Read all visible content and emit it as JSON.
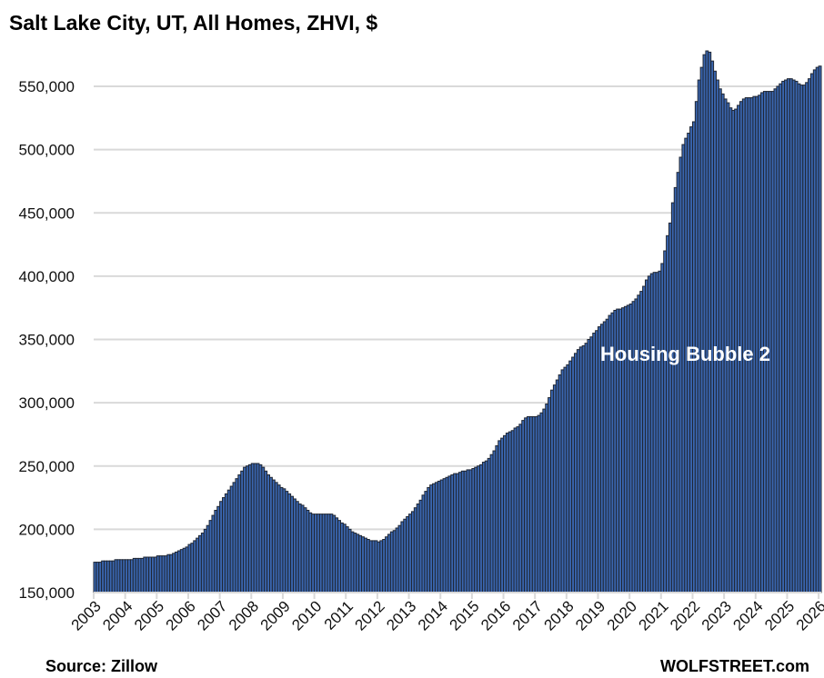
{
  "chart_data": {
    "type": "bar",
    "title": "Salt Lake City, UT, All Homes, ZHVI, $",
    "xlabel": "",
    "ylabel": "",
    "x_start": "2003-01",
    "x_frequency": "monthly",
    "ylim": [
      150000,
      580000
    ],
    "yticks": [
      150000,
      200000,
      250000,
      300000,
      350000,
      400000,
      450000,
      500000,
      550000
    ],
    "ytick_labels": [
      "150,000",
      "200,000",
      "250,000",
      "300,000",
      "350,000",
      "400,000",
      "450,000",
      "500,000",
      "550,000"
    ],
    "xtick_labels": [
      "2003",
      "2004",
      "2005",
      "2006",
      "2007",
      "2008",
      "2009",
      "2010",
      "2011",
      "2012",
      "2013",
      "2014",
      "2015",
      "2016",
      "2017",
      "2018",
      "2019",
      "2020",
      "2021",
      "2022",
      "2023",
      "2024",
      "2025",
      "2026"
    ],
    "grid": "horizontal",
    "bar_color": "#3a66b0",
    "bar_edge_color": "#1f2633",
    "grid_color": "#d9d9d9",
    "annotation": "Housing Bubble 2",
    "values": [
      174000,
      174000,
      174000,
      175000,
      175000,
      175000,
      175000,
      175000,
      176000,
      176000,
      176000,
      176000,
      176000,
      176000,
      176000,
      177000,
      177000,
      177000,
      177000,
      178000,
      178000,
      178000,
      178000,
      178000,
      179000,
      179000,
      179000,
      179000,
      180000,
      180000,
      181000,
      182000,
      183000,
      184000,
      185000,
      186000,
      188000,
      189000,
      191000,
      193000,
      195000,
      197000,
      200000,
      203000,
      207000,
      211000,
      215000,
      218000,
      222000,
      225000,
      228000,
      231000,
      234000,
      237000,
      240000,
      243000,
      246000,
      249000,
      250000,
      251000,
      252000,
      252000,
      252000,
      251000,
      249000,
      246000,
      243000,
      241000,
      239000,
      237000,
      235000,
      233000,
      232000,
      230000,
      228000,
      226000,
      224000,
      222000,
      220000,
      219000,
      217000,
      215000,
      213000,
      212000,
      212000,
      212000,
      212000,
      212000,
      212000,
      212000,
      212000,
      211000,
      209000,
      207000,
      205000,
      204000,
      202000,
      200000,
      198000,
      197000,
      196000,
      195000,
      194000,
      193000,
      192000,
      191000,
      191000,
      191000,
      190000,
      191000,
      192000,
      194000,
      196000,
      198000,
      199000,
      201000,
      203000,
      206000,
      208000,
      210000,
      212000,
      214000,
      217000,
      220000,
      223000,
      227000,
      230000,
      233000,
      235000,
      236000,
      237000,
      238000,
      239000,
      240000,
      241000,
      242000,
      243000,
      244000,
      244000,
      245000,
      246000,
      246000,
      247000,
      247000,
      248000,
      249000,
      250000,
      251000,
      253000,
      254000,
      256000,
      259000,
      262000,
      266000,
      270000,
      272000,
      274000,
      276000,
      277000,
      278000,
      280000,
      281000,
      283000,
      286000,
      288000,
      289000,
      289000,
      289000,
      289000,
      290000,
      292000,
      295000,
      299000,
      304000,
      310000,
      314000,
      318000,
      322000,
      326000,
      328000,
      330000,
      333000,
      336000,
      339000,
      342000,
      344000,
      345000,
      347000,
      350000,
      352000,
      355000,
      357000,
      360000,
      362000,
      364000,
      366000,
      369000,
      371000,
      373000,
      374000,
      374000,
      375000,
      376000,
      377000,
      378000,
      380000,
      382000,
      385000,
      388000,
      392000,
      397000,
      400000,
      402000,
      403000,
      403000,
      404000,
      410000,
      420000,
      432000,
      442000,
      458000,
      470000,
      482000,
      494000,
      504000,
      509000,
      513000,
      518000,
      522000,
      538000,
      555000,
      565000,
      575000,
      578000,
      577000,
      570000,
      562000,
      555000,
      548000,
      544000,
      540000,
      537000,
      533000,
      531000,
      532000,
      535000,
      538000,
      540000,
      541000,
      541000,
      541000,
      542000,
      542000,
      543000,
      545000,
      546000,
      546000,
      546000,
      546000,
      548000,
      550000,
      552000,
      554000,
      555000,
      556000,
      556000,
      555000,
      554000,
      552000,
      551000,
      551000,
      553000,
      556000,
      560000,
      563000,
      565000,
      566000
    ]
  },
  "footer": {
    "source": "Source: Zillow",
    "brand": "WOLFSTREET.com"
  }
}
